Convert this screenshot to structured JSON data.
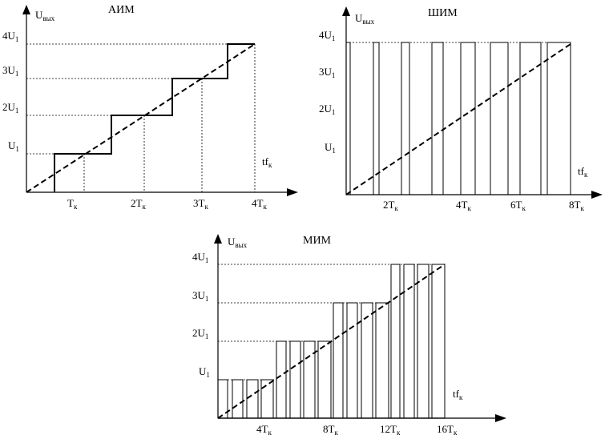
{
  "panels": {
    "aim": {
      "title": "АИМ",
      "y_label": "U",
      "y_label_sub": "вых",
      "x_label": "tf",
      "x_label_sub": "к",
      "y_ticks": [
        {
          "pre": "4U",
          "sub": "1"
        },
        {
          "pre": "3U",
          "sub": "1"
        },
        {
          "pre": "2U",
          "sub": "1"
        },
        {
          "pre": "U",
          "sub": "1"
        }
      ],
      "x_ticks": [
        {
          "pre": "T",
          "sub": "к"
        },
        {
          "pre": "2T",
          "sub": "к"
        },
        {
          "pre": "3T",
          "sub": "к"
        },
        {
          "pre": "4T",
          "sub": "к"
        }
      ]
    },
    "shim": {
      "title": "ШИМ",
      "y_label": "U",
      "y_label_sub": "вых",
      "x_label": "tf",
      "x_label_sub": "к",
      "y_ticks": [
        {
          "pre": "4U",
          "sub": "1"
        },
        {
          "pre": "3U",
          "sub": "1"
        },
        {
          "pre": "2U",
          "sub": "1"
        },
        {
          "pre": "U",
          "sub": "1"
        }
      ],
      "x_ticks": [
        {
          "pre": "2T",
          "sub": "к"
        },
        {
          "pre": "4T",
          "sub": "к"
        },
        {
          "pre": "6T",
          "sub": "к"
        },
        {
          "pre": "8T",
          "sub": "к"
        }
      ]
    },
    "mim": {
      "title": "МИМ",
      "y_label": "U",
      "y_label_sub": "вых",
      "x_label": "tf",
      "x_label_sub": "к",
      "y_ticks": [
        {
          "pre": "4U",
          "sub": "1"
        },
        {
          "pre": "3U",
          "sub": "1"
        },
        {
          "pre": "2U",
          "sub": "1"
        },
        {
          "pre": "U",
          "sub": "1"
        }
      ],
      "x_ticks": [
        {
          "pre": "4T",
          "sub": "к"
        },
        {
          "pre": "8T",
          "sub": "к"
        },
        {
          "pre": "12T",
          "sub": "к"
        },
        {
          "pre": "16T",
          "sub": "к"
        }
      ]
    }
  }
}
